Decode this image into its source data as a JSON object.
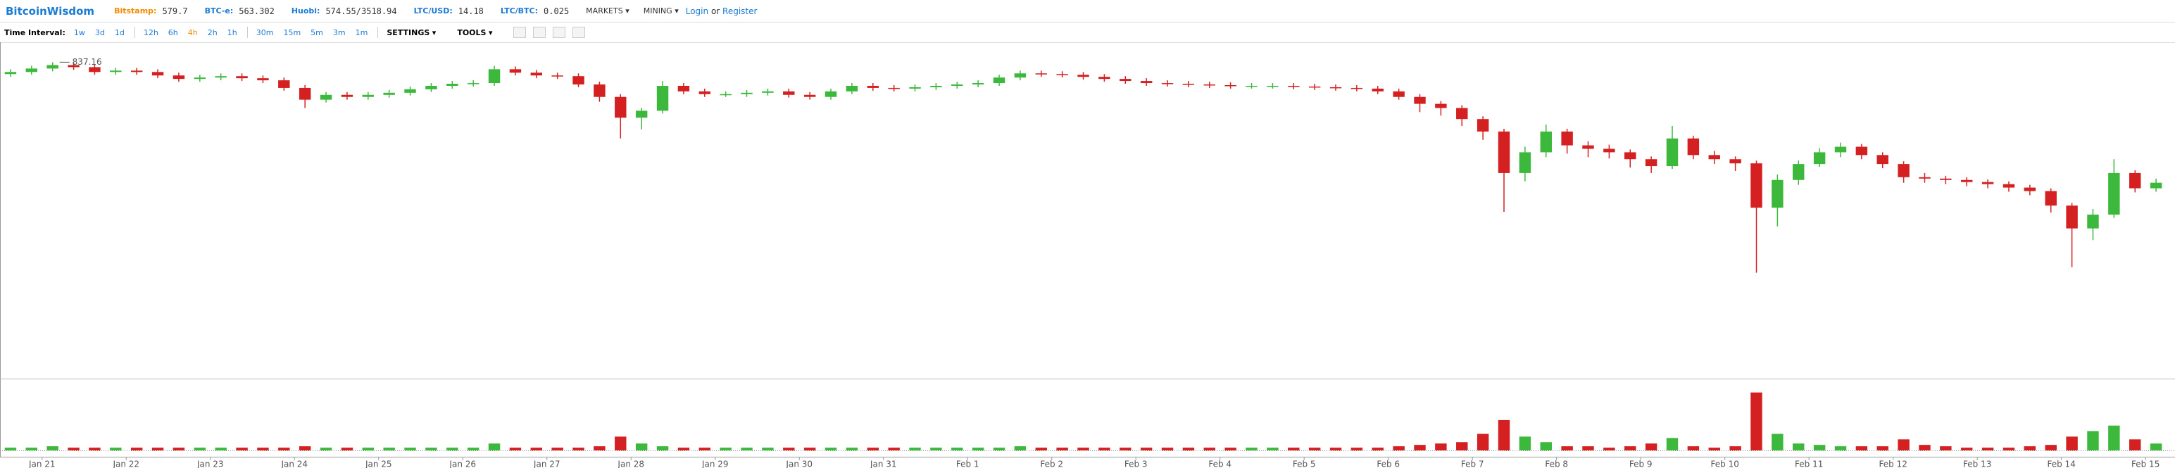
{
  "header": {
    "brand": "BitcoinWisdom",
    "tickers": [
      {
        "label": "Bitstamp:",
        "value": "579.7"
      },
      {
        "label": "BTC-e:",
        "value": "563.302"
      },
      {
        "label": "Huobi:",
        "value": "574.55/3518.94"
      },
      {
        "label": "LTC/USD:",
        "value": "14.18"
      },
      {
        "label": "LTC/BTC:",
        "value": "0.025"
      }
    ],
    "menus": [
      "MARKETS",
      "MINING"
    ],
    "login": "Login",
    "or": "or",
    "register": "Register"
  },
  "toolbar": {
    "label": "Time Interval:",
    "intervals": [
      "1w",
      "3d",
      "1d",
      "12h",
      "6h",
      "4h",
      "2h",
      "1h",
      "30m",
      "15m",
      "5m",
      "3m",
      "1m"
    ],
    "menus": [
      "SETTINGS",
      "TOOLS"
    ]
  },
  "chart_data": {
    "type": "candlestick",
    "up_color": "#3cb83c",
    "down_color": "#d42020",
    "xlim": [
      20.5,
      46.35
    ],
    "ylim": [
      380,
      865
    ],
    "volume_lim": [
      0,
      50
    ],
    "xticks": [
      {
        "value": 21,
        "label": "Jan 21"
      },
      {
        "value": 22,
        "label": "Jan 22"
      },
      {
        "value": 23,
        "label": "Jan 23"
      },
      {
        "value": 24,
        "label": "Jan 24"
      },
      {
        "value": 25,
        "label": "Jan 25"
      },
      {
        "value": 26,
        "label": "Jan 26"
      },
      {
        "value": 27,
        "label": "Jan 27"
      },
      {
        "value": 28,
        "label": "Jan 28"
      },
      {
        "value": 29,
        "label": "Jan 29"
      },
      {
        "value": 30,
        "label": "Jan 30"
      },
      {
        "value": 31,
        "label": "Jan 31"
      },
      {
        "value": 32,
        "label": "Feb 1"
      },
      {
        "value": 33,
        "label": "Feb 2"
      },
      {
        "value": 34,
        "label": "Feb 3"
      },
      {
        "value": 35,
        "label": "Feb 4"
      },
      {
        "value": 36,
        "label": "Feb 5"
      },
      {
        "value": 37,
        "label": "Feb 6"
      },
      {
        "value": 38,
        "label": "Feb 7"
      },
      {
        "value": 39,
        "label": "Feb 8"
      },
      {
        "value": 40,
        "label": "Feb 9"
      },
      {
        "value": 41,
        "label": "Feb 10"
      },
      {
        "value": 42,
        "label": "Feb 11"
      },
      {
        "value": 43,
        "label": "Feb 12"
      },
      {
        "value": 44,
        "label": "Feb 13"
      },
      {
        "value": 45,
        "label": "Feb 14"
      },
      {
        "value": 46,
        "label": "Feb 15"
      }
    ],
    "x": [
      20.625,
      20.875,
      21.125,
      21.375,
      21.625,
      21.875,
      22.125,
      22.375,
      22.625,
      22.875,
      23.125,
      23.375,
      23.625,
      23.875,
      24.125,
      24.375,
      24.625,
      24.875,
      25.125,
      25.375,
      25.625,
      25.875,
      26.125,
      26.375,
      26.625,
      26.875,
      27.125,
      27.375,
      27.625,
      27.875,
      28.125,
      28.375,
      28.625,
      28.875,
      29.125,
      29.375,
      29.625,
      29.875,
      30.125,
      30.375,
      30.625,
      30.875,
      31.125,
      31.375,
      31.625,
      31.875,
      32.125,
      32.375,
      32.625,
      32.875,
      33.125,
      33.375,
      33.625,
      33.875,
      34.125,
      34.375,
      34.625,
      34.875,
      35.125,
      35.375,
      35.625,
      35.875,
      36.125,
      36.375,
      36.625,
      36.875,
      37.125,
      37.375,
      37.625,
      37.875,
      38.125,
      38.375,
      38.625,
      38.875,
      39.125,
      39.375,
      39.625,
      39.875,
      40.125,
      40.375,
      40.625,
      40.875,
      41.125,
      41.375,
      41.625,
      41.875,
      42.125,
      42.375,
      42.625,
      42.875,
      43.125,
      43.375,
      43.625,
      43.875,
      44.125,
      44.375,
      44.625,
      44.875,
      45.125,
      45.375,
      45.625,
      45.875,
      46.125
    ],
    "open": [
      820,
      823,
      828,
      833,
      830,
      823,
      825,
      823,
      818,
      813,
      815,
      817,
      814,
      811,
      800,
      783,
      790,
      787,
      790,
      793,
      798,
      803,
      806,
      807,
      827,
      822,
      818,
      817,
      805,
      787,
      757,
      767,
      803,
      795,
      791,
      791,
      793,
      795,
      790,
      787,
      795,
      803,
      800,
      799,
      801,
      803,
      805,
      807,
      815,
      821,
      820,
      819,
      816,
      813,
      810,
      807,
      806,
      805,
      804,
      803,
      803,
      803,
      802,
      801,
      800,
      799,
      795,
      787,
      777,
      771,
      755,
      737,
      677,
      707,
      737,
      717,
      712,
      707,
      697,
      687,
      727,
      703,
      697,
      691,
      627,
      667,
      690,
      707,
      715,
      703,
      690,
      671,
      669,
      667,
      664,
      661,
      656,
      651,
      630,
      597,
      617,
      677,
      655
    ],
    "high": [
      827,
      832,
      837.16,
      837,
      834,
      829,
      829,
      827,
      822,
      819,
      821,
      821,
      818,
      815,
      804,
      794,
      794,
      794,
      797,
      802,
      807,
      810,
      811,
      832,
      831,
      826,
      822,
      821,
      809,
      791,
      771,
      810,
      807,
      799,
      795,
      797,
      799,
      799,
      794,
      799,
      807,
      807,
      804,
      805,
      807,
      809,
      811,
      819,
      825,
      825,
      824,
      823,
      820,
      817,
      814,
      811,
      810,
      809,
      808,
      807,
      807,
      807,
      806,
      805,
      804,
      803,
      799,
      791,
      781,
      775,
      759,
      741,
      715,
      747,
      741,
      723,
      718,
      711,
      701,
      745,
      731,
      709,
      701,
      695,
      675,
      695,
      713,
      721,
      719,
      707,
      694,
      677,
      673,
      671,
      668,
      665,
      660,
      655,
      634,
      625,
      697,
      681,
      669
    ],
    "low": [
      816,
      819,
      824,
      826,
      819,
      819,
      819,
      814,
      809,
      809,
      811,
      810,
      807,
      796,
      771,
      779,
      783,
      783,
      786,
      789,
      794,
      799,
      802,
      803,
      818,
      814,
      813,
      801,
      780,
      727,
      740,
      763,
      791,
      787,
      787,
      787,
      789,
      786,
      783,
      783,
      791,
      796,
      795,
      795,
      797,
      799,
      801,
      803,
      811,
      816,
      815,
      812,
      809,
      806,
      803,
      802,
      801,
      800,
      799,
      799,
      799,
      798,
      797,
      796,
      795,
      791,
      783,
      765,
      760,
      745,
      725,
      621,
      665,
      700,
      705,
      700,
      698,
      685,
      677,
      683,
      697,
      690,
      680,
      533,
      600,
      660,
      686,
      700,
      697,
      684,
      663,
      663,
      661,
      658,
      655,
      650,
      645,
      620,
      541,
      580,
      612,
      649,
      650
    ],
    "close": [
      823,
      828,
      833,
      830,
      823,
      825,
      823,
      818,
      813,
      815,
      817,
      814,
      811,
      800,
      783,
      790,
      787,
      790,
      793,
      798,
      803,
      806,
      807,
      827,
      822,
      818,
      817,
      805,
      787,
      757,
      767,
      803,
      795,
      791,
      791,
      793,
      795,
      790,
      787,
      795,
      803,
      800,
      799,
      801,
      803,
      805,
      807,
      815,
      821,
      820,
      819,
      816,
      813,
      810,
      807,
      806,
      805,
      804,
      803,
      803,
      803,
      802,
      801,
      800,
      799,
      795,
      787,
      777,
      771,
      755,
      737,
      677,
      707,
      737,
      717,
      712,
      707,
      697,
      687,
      727,
      703,
      697,
      691,
      627,
      667,
      690,
      707,
      715,
      703,
      690,
      671,
      669,
      667,
      664,
      661,
      656,
      651,
      630,
      597,
      617,
      677,
      655,
      663
    ],
    "volume": [
      2,
      2,
      3,
      2,
      2,
      2,
      2,
      2,
      2,
      2,
      2,
      2,
      2,
      2,
      3,
      2,
      2,
      2,
      2,
      2,
      2,
      2,
      2,
      5,
      2,
      2,
      2,
      2,
      3,
      10,
      5,
      3,
      2,
      2,
      2,
      2,
      2,
      2,
      2,
      2,
      2,
      2,
      2,
      2,
      2,
      2,
      2,
      2,
      3,
      2,
      2,
      2,
      2,
      2,
      2,
      2,
      2,
      2,
      2,
      2,
      2,
      2,
      2,
      2,
      2,
      2,
      3,
      4,
      5,
      6,
      12,
      22,
      10,
      6,
      3,
      3,
      2,
      3,
      5,
      9,
      3,
      2,
      3,
      42,
      12,
      5,
      4,
      3,
      3,
      3,
      8,
      4,
      3,
      2,
      2,
      2,
      3,
      4,
      10,
      14,
      18,
      8,
      5
    ]
  }
}
